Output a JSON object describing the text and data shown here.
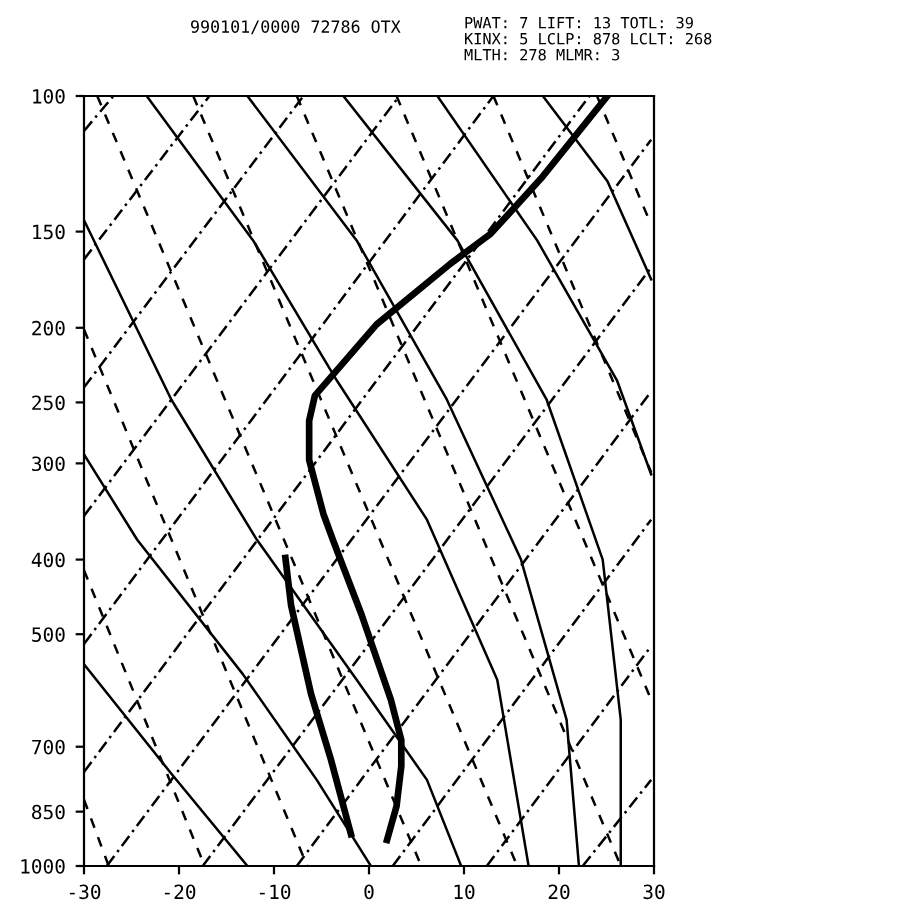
{
  "chart_data": {
    "type": "line",
    "log": "y",
    "grid": false,
    "xlim": [
      -30,
      30
    ],
    "xticks": [
      -30,
      -20,
      -10,
      0,
      10,
      20,
      30
    ],
    "ylim": [
      1000,
      100
    ],
    "yticks": [
      100,
      150,
      200,
      250,
      300,
      400,
      500,
      700,
      850,
      1000
    ],
    "annotations": [
      "990101/0000 72786 OTX",
      "PWAT: 7 LIFT: 13 TOTL: 39",
      "KINX: 5 LCLP: 878 LCLT: 268",
      "MLTH: 278 MLMR: 3"
    ],
    "series": [
      {
        "color": "#000000",
        "line_style": "solid",
        "x": [
          25.1,
          18.1,
          12.8,
          8.6,
          0.8,
          -5.7,
          -6.3,
          -6.3,
          -4.8,
          -3.8,
          -0.8,
          2.3,
          3.4,
          3.4,
          2.9,
          1.9
        ],
        "values": [
          100,
          128,
          151,
          165,
          198,
          245,
          264,
          297,
          349,
          377,
          471,
          608,
          686,
          742,
          836,
          925
        ]
      },
      {
        "color": "#000000",
        "line_style": "solid",
        "x": [
          -8.8,
          -8.2,
          -6.1,
          -4.0,
          -1.9
        ],
        "values": [
          398,
          459,
          598,
          728,
          909
        ]
      },
      {
        "color": "#000000",
        "line_style": "solid",
        "x": [
          -30,
          -20.8,
          -12.8
        ],
        "values": [
          547,
          759,
          1000
        ]
      },
      {
        "color": "#000000",
        "line_style": "solid",
        "x": [
          -30,
          -24.4,
          -13.3,
          -5.5,
          0.2
        ],
        "values": [
          292,
          377,
          563,
          773,
          1000
        ]
      },
      {
        "color": "#000000",
        "line_style": "solid",
        "x": [
          -30,
          -20.8,
          -11.8,
          -1.3,
          6.1,
          9.7
        ],
        "values": [
          145,
          248,
          377,
          573,
          773,
          1000
        ]
      },
      {
        "color": "#000000",
        "line_style": "solid",
        "x": [
          -23.4,
          -12.2,
          -3.4,
          6.1,
          13.5,
          16.8
        ],
        "values": [
          100,
          154,
          234,
          355,
          573,
          1000
        ]
      },
      {
        "color": "#000000",
        "line_style": "solid",
        "x": [
          -12.8,
          -1.3,
          8.2,
          16.0,
          20.8,
          22.1
        ],
        "values": [
          100,
          154,
          248,
          400,
          646,
          1000
        ]
      },
      {
        "color": "#000000",
        "line_style": "solid",
        "x": [
          -2.7,
          9.3,
          18.7,
          24.6,
          26.5,
          26.5
        ],
        "values": [
          100,
          154,
          248,
          400,
          646,
          1000
        ]
      },
      {
        "color": "#000000",
        "line_style": "solid",
        "x": [
          7.2,
          17.7,
          26.1,
          29.7
        ],
        "values": [
          100,
          154,
          234,
          310
        ]
      },
      {
        "color": "#000000",
        "line_style": "solid",
        "x": [
          18.3,
          25.1,
          29.7
        ],
        "values": [
          100,
          129,
          173
        ]
      },
      {
        "color": "#000000",
        "line_style": "dashed",
        "x": [
          -28.6,
          5.5
        ],
        "values": [
          100,
          1000
        ]
      },
      {
        "color": "#000000",
        "line_style": "dashed",
        "x": [
          -18.5,
          15.6
        ],
        "values": [
          100,
          1000
        ]
      },
      {
        "color": "#000000",
        "line_style": "dashed",
        "x": [
          -7.6,
          26.5
        ],
        "values": [
          100,
          1000
        ]
      },
      {
        "color": "#000000",
        "line_style": "dashed",
        "x": [
          2.9,
          29.7
        ],
        "values": [
          100,
          608
        ]
      },
      {
        "color": "#000000",
        "line_style": "dashed",
        "x": [
          13.1,
          29.7
        ],
        "values": [
          100,
          308
        ]
      },
      {
        "color": "#000000",
        "line_style": "dashed",
        "x": [
          24.0,
          29.7
        ],
        "values": [
          100,
          147
        ]
      },
      {
        "color": "#000000",
        "line_style": "dashed",
        "x": [
          -30,
          -6.5
        ],
        "values": [
          201,
          1000
        ]
      },
      {
        "color": "#000000",
        "line_style": "dashed",
        "x": [
          -30,
          -17.3
        ],
        "values": [
          413,
          1000
        ]
      },
      {
        "color": "#000000",
        "line_style": "dashed",
        "x": [
          -30,
          -27.4
        ],
        "values": [
          820,
          1000
        ]
      },
      {
        "color": "#000000",
        "line_style": "dashdot",
        "x": [
          -30,
          -26.9
        ],
        "values": [
          111,
          100
        ]
      },
      {
        "color": "#000000",
        "line_style": "dashdot",
        "x": [
          -30,
          -16.8
        ],
        "values": [
          163,
          100
        ]
      },
      {
        "color": "#000000",
        "line_style": "dashdot",
        "x": [
          -30,
          -6.9
        ],
        "values": [
          239,
          100
        ]
      },
      {
        "color": "#000000",
        "line_style": "dashdot",
        "x": [
          -30,
          3.2
        ],
        "values": [
          351,
          100
        ]
      },
      {
        "color": "#000000",
        "line_style": "dashdot",
        "x": [
          -30,
          13.1
        ],
        "values": [
          515,
          100
        ]
      },
      {
        "color": "#000000",
        "line_style": "dashdot",
        "x": [
          -30,
          23.2
        ],
        "values": [
          755,
          100
        ]
      },
      {
        "color": "#000000",
        "line_style": "dashdot",
        "x": [
          -27.6,
          29.7
        ],
        "values": [
          1000,
          114
        ]
      },
      {
        "color": "#000000",
        "line_style": "dashdot",
        "x": [
          -17.5,
          29.7
        ],
        "values": [
          1000,
          167
        ]
      },
      {
        "color": "#000000",
        "line_style": "dashdot",
        "x": [
          -7.6,
          29.7
        ],
        "values": [
          1000,
          242
        ]
      },
      {
        "color": "#000000",
        "line_style": "dashdot",
        "x": [
          2.5,
          29.7
        ],
        "values": [
          1000,
          355
        ]
      },
      {
        "color": "#000000",
        "line_style": "dashdot",
        "x": [
          12.4,
          29.7
        ],
        "values": [
          1000,
          518
        ]
      },
      {
        "color": "#000000",
        "line_style": "dashdot",
        "x": [
          22.5,
          29.7
        ],
        "values": [
          1000,
          773
        ]
      }
    ]
  }
}
